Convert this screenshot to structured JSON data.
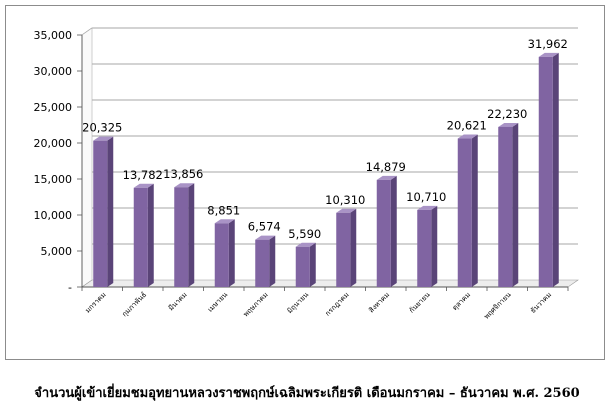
{
  "chart_data": {
    "type": "bar",
    "categories": [
      "มกราคม",
      "กุมภาพันธ์",
      "มีนาคม",
      "เมษายน",
      "พฤษภาคม",
      "มิถุนายน",
      "กรกฎาคม",
      "สิงหาคม",
      "กันยายน",
      "ตุลาคม",
      "พฤศจิกายน",
      "ธันวาคม"
    ],
    "values": [
      20325,
      13782,
      13856,
      8851,
      6574,
      5590,
      10310,
      14879,
      10710,
      20621,
      22230,
      31962
    ],
    "value_labels": [
      "20,325",
      "13,782",
      "13,856",
      "8,851",
      "6,574",
      "5,590",
      "10,310",
      "14,879",
      "10,710",
      "20,621",
      "22,230",
      "31,962"
    ],
    "yticks": [
      "-",
      "5,000",
      "10,000",
      "15,000",
      "20,000",
      "25,000",
      "30,000",
      "35,000"
    ],
    "ylim": [
      0,
      35000
    ],
    "grid": true,
    "legend": "none",
    "style": "3d-bar",
    "bar_color": "#8064a2"
  },
  "caption": "จำนวนผู้เข้าเยี่ยมชมอุทยานหลวงราชพฤกษ์เฉลิมพระเกียรติ เดือนมกราคม – ธันวาคม พ.ศ. 2560"
}
